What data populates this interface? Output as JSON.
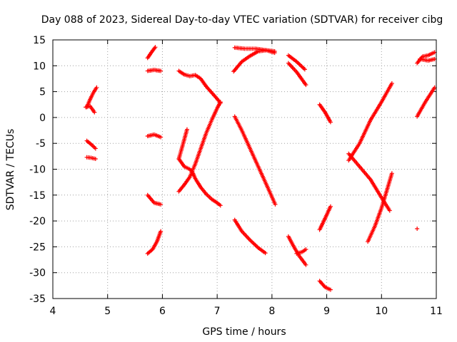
{
  "chart_data": {
    "type": "scatter",
    "title": "Day 088 of 2023, Sidereal Day-to-day VTEC variation (SDTVAR) for receiver cibg",
    "xlabel": "GPS time / hours",
    "ylabel": "SDTVAR / TECUs",
    "xlim": [
      4,
      11
    ],
    "ylim": [
      -35,
      15
    ],
    "xticks": [
      4,
      5,
      6,
      7,
      8,
      9,
      10,
      11
    ],
    "yticks": [
      -35,
      -30,
      -25,
      -20,
      -15,
      -10,
      -5,
      0,
      5,
      10,
      15
    ],
    "grid": true,
    "legend": "none",
    "marker": "plus",
    "color": "#ff0000",
    "segments": [
      {
        "x": [
          4.62,
          4.68,
          4.74,
          4.8
        ],
        "y": [
          2.0,
          3.5,
          4.8,
          5.8
        ]
      },
      {
        "x": [
          4.6,
          4.68,
          4.76
        ],
        "y": [
          2.0,
          2.2,
          1.0
        ]
      },
      {
        "x": [
          4.62,
          4.7,
          4.78
        ],
        "y": [
          -4.5,
          -5.2,
          -6.0
        ]
      },
      {
        "x": [
          4.62,
          4.7,
          4.78
        ],
        "y": [
          -7.7,
          -7.8,
          -8.0
        ]
      },
      {
        "x": [
          5.73,
          5.8,
          5.87
        ],
        "y": [
          11.5,
          12.6,
          13.6
        ]
      },
      {
        "x": [
          5.73,
          5.85,
          5.97
        ],
        "y": [
          9.0,
          9.2,
          9.0
        ]
      },
      {
        "x": [
          5.73,
          5.85,
          5.97
        ],
        "y": [
          -3.6,
          -3.3,
          -3.8
        ]
      },
      {
        "x": [
          5.73,
          5.85,
          5.97
        ],
        "y": [
          -15.0,
          -16.5,
          -16.8
        ]
      },
      {
        "x": [
          5.73,
          5.82,
          5.9,
          5.97
        ],
        "y": [
          -26.3,
          -25.5,
          -24.0,
          -22.0
        ]
      },
      {
        "x": [
          6.3,
          6.4,
          6.5,
          6.6,
          6.7,
          6.8,
          6.9,
          7.0,
          7.06
        ],
        "y": [
          9.0,
          8.3,
          8.0,
          8.2,
          7.5,
          6.0,
          4.8,
          3.6,
          2.8
        ]
      },
      {
        "x": [
          6.3,
          6.4,
          6.5,
          6.55,
          6.6,
          6.7,
          6.8,
          6.9,
          7.0,
          7.06
        ],
        "y": [
          -8.0,
          -9.5,
          -10.0,
          -10.6,
          -11.8,
          -13.5,
          -14.8,
          -15.8,
          -16.5,
          -17.0
        ]
      },
      {
        "x": [
          6.3,
          6.4,
          6.5,
          6.6,
          6.7,
          6.8,
          6.9,
          7.0,
          7.06
        ],
        "y": [
          -14.3,
          -13.0,
          -11.5,
          -9.0,
          -6.0,
          -3.0,
          -0.5,
          1.8,
          3.0
        ]
      },
      {
        "x": [
          6.3,
          6.38,
          6.45
        ],
        "y": [
          -8.0,
          -5.0,
          -2.3
        ]
      },
      {
        "x": [
          7.3,
          7.45,
          7.6,
          7.75,
          7.9,
          8.05
        ],
        "y": [
          8.9,
          10.8,
          11.9,
          12.8,
          13.0,
          12.8
        ]
      },
      {
        "x": [
          7.32,
          7.5,
          7.7,
          7.9,
          8.05
        ],
        "y": [
          13.5,
          13.3,
          13.3,
          13.0,
          12.5
        ]
      },
      {
        "x": [
          7.32,
          7.45,
          7.6,
          7.75,
          7.9,
          8.06
        ],
        "y": [
          0.2,
          -2.5,
          -6.0,
          -9.5,
          -13.0,
          -16.8
        ]
      },
      {
        "x": [
          7.32,
          7.45,
          7.6,
          7.75,
          7.88
        ],
        "y": [
          -19.8,
          -22.0,
          -23.7,
          -25.2,
          -26.2
        ]
      },
      {
        "x": [
          8.3,
          8.45,
          8.6
        ],
        "y": [
          12.0,
          10.8,
          9.3
        ]
      },
      {
        "x": [
          8.3,
          8.45,
          8.62
        ],
        "y": [
          10.5,
          8.8,
          6.3
        ]
      },
      {
        "x": [
          8.3,
          8.4,
          8.5,
          8.62
        ],
        "y": [
          -23.0,
          -25.0,
          -26.8,
          -28.5
        ]
      },
      {
        "x": [
          8.45,
          8.55,
          8.62
        ],
        "y": [
          -26.3,
          -26.0,
          -25.5
        ]
      },
      {
        "x": [
          8.87,
          8.97,
          9.07
        ],
        "y": [
          2.5,
          1.0,
          -0.9
        ]
      },
      {
        "x": [
          8.87,
          8.97,
          9.07
        ],
        "y": [
          -21.7,
          -19.5,
          -17.2
        ]
      },
      {
        "x": [
          8.87,
          8.97,
          9.07
        ],
        "y": [
          -31.6,
          -32.8,
          -33.3
        ]
      },
      {
        "x": [
          9.4,
          9.6,
          9.8,
          10.0,
          10.19
        ],
        "y": [
          -8.3,
          -5.0,
          -0.5,
          3.0,
          6.6
        ]
      },
      {
        "x": [
          9.4,
          9.6,
          9.8,
          10.0,
          10.15
        ],
        "y": [
          -7.0,
          -9.5,
          -12.0,
          -15.5,
          -18.0
        ]
      },
      {
        "x": [
          9.75,
          9.88,
          10.0,
          10.1,
          10.19
        ],
        "y": [
          -24.0,
          -21.0,
          -17.5,
          -14.0,
          -10.8
        ]
      },
      {
        "x": [
          10.65,
          10.8,
          10.97
        ],
        "y": [
          0.2,
          3.0,
          5.8
        ]
      },
      {
        "x": [
          10.65,
          10.75,
          10.85,
          10.97
        ],
        "y": [
          10.5,
          11.8,
          12.0,
          12.6
        ]
      },
      {
        "x": [
          10.7,
          10.85,
          10.97
        ],
        "y": [
          11.3,
          11.0,
          11.3
        ]
      },
      {
        "x": [
          10.65
        ],
        "y": [
          -21.5
        ]
      }
    ]
  }
}
